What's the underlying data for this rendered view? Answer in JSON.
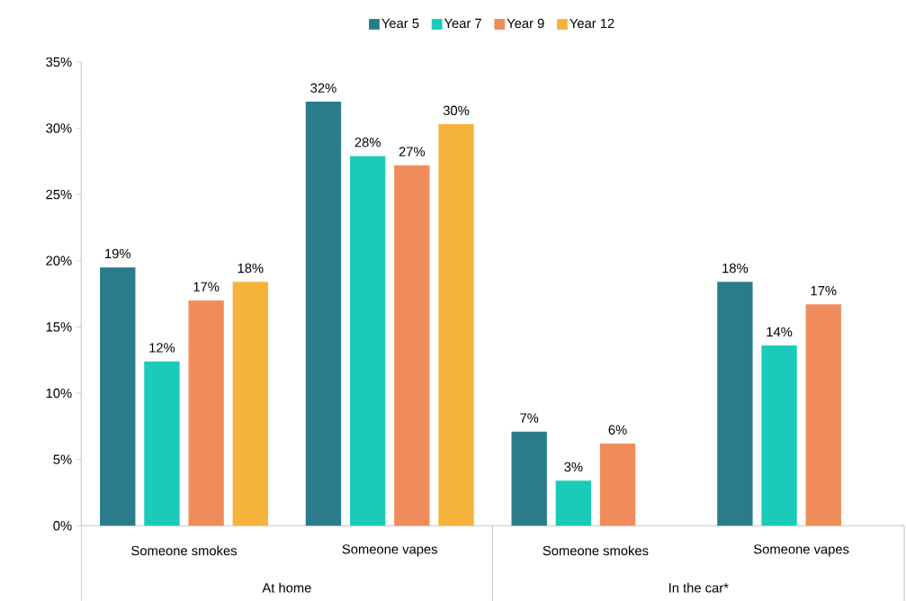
{
  "chart_data": {
    "type": "bar",
    "categories": [
      "Someone smokes",
      "Someone vapes",
      "Someone smokes",
      "Someone vapes"
    ],
    "annotations": [
      "At home",
      "In the car*"
    ],
    "series": [
      {
        "name": "Year 5",
        "color": "#2a7b8c",
        "values": [
          19.5,
          32.0,
          7.1,
          18.4
        ],
        "value_labels": [
          "19%",
          "32%",
          "7%",
          "18%"
        ]
      },
      {
        "name": "Year 7",
        "color": "#19cbb8",
        "values": [
          12.4,
          27.9,
          3.4,
          13.6
        ],
        "value_labels": [
          "12%",
          "28%",
          "3%",
          "14%"
        ]
      },
      {
        "name": "Year 9",
        "color": "#f08c5c",
        "values": [
          17.0,
          27.2,
          6.2,
          16.7
        ],
        "value_labels": [
          "17%",
          "27%",
          "6%",
          "17%"
        ]
      },
      {
        "name": "Year 12",
        "color": "#f6b33c",
        "values": [
          18.4,
          30.3,
          null,
          null
        ],
        "value_labels": [
          "18%",
          "30%",
          null,
          null
        ]
      }
    ],
    "ylim": [
      0,
      35
    ],
    "yticks": [
      {
        "value": 0,
        "label": "0%"
      },
      {
        "value": 5,
        "label": "5%"
      },
      {
        "value": 10,
        "label": "10%"
      },
      {
        "value": 15,
        "label": "15%"
      },
      {
        "value": 20,
        "label": "20%"
      },
      {
        "value": 25,
        "label": "25%"
      },
      {
        "value": 30,
        "label": "30%"
      },
      {
        "value": 35,
        "label": "35%"
      }
    ],
    "legend": "top"
  }
}
